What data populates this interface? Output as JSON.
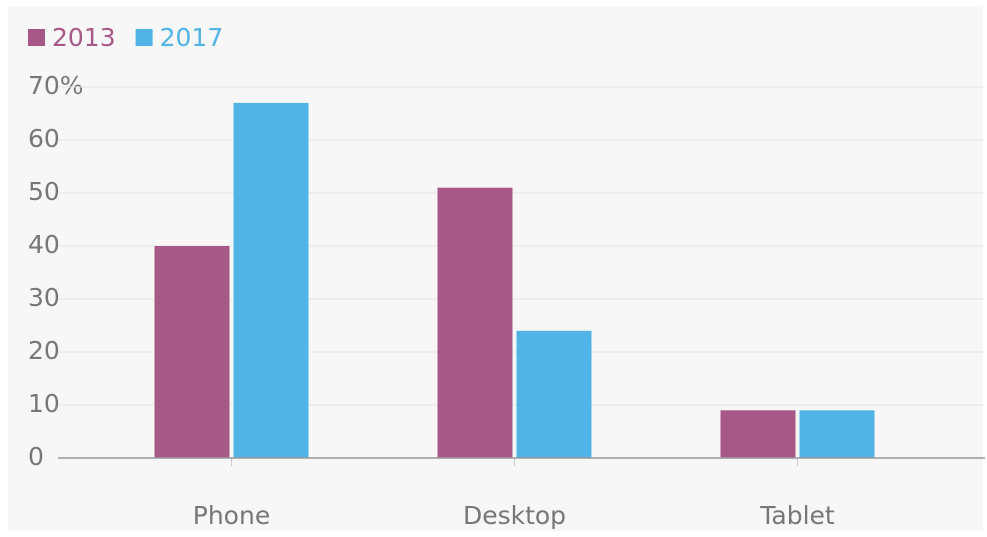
{
  "chart_data": {
    "type": "bar",
    "categories": [
      "Phone",
      "Desktop",
      "Tablet"
    ],
    "series": [
      {
        "name": "2013",
        "color": "#a85886",
        "values": [
          40,
          51,
          9
        ]
      },
      {
        "name": "2017",
        "color": "#52b3e6",
        "values": [
          67,
          24,
          9
        ]
      }
    ],
    "ylim": [
      0,
      70
    ],
    "yticks": [
      0,
      10,
      20,
      30,
      40,
      50,
      60,
      {
        "value": 70,
        "label": "70%"
      }
    ],
    "grid": true,
    "legend": "top-left"
  }
}
